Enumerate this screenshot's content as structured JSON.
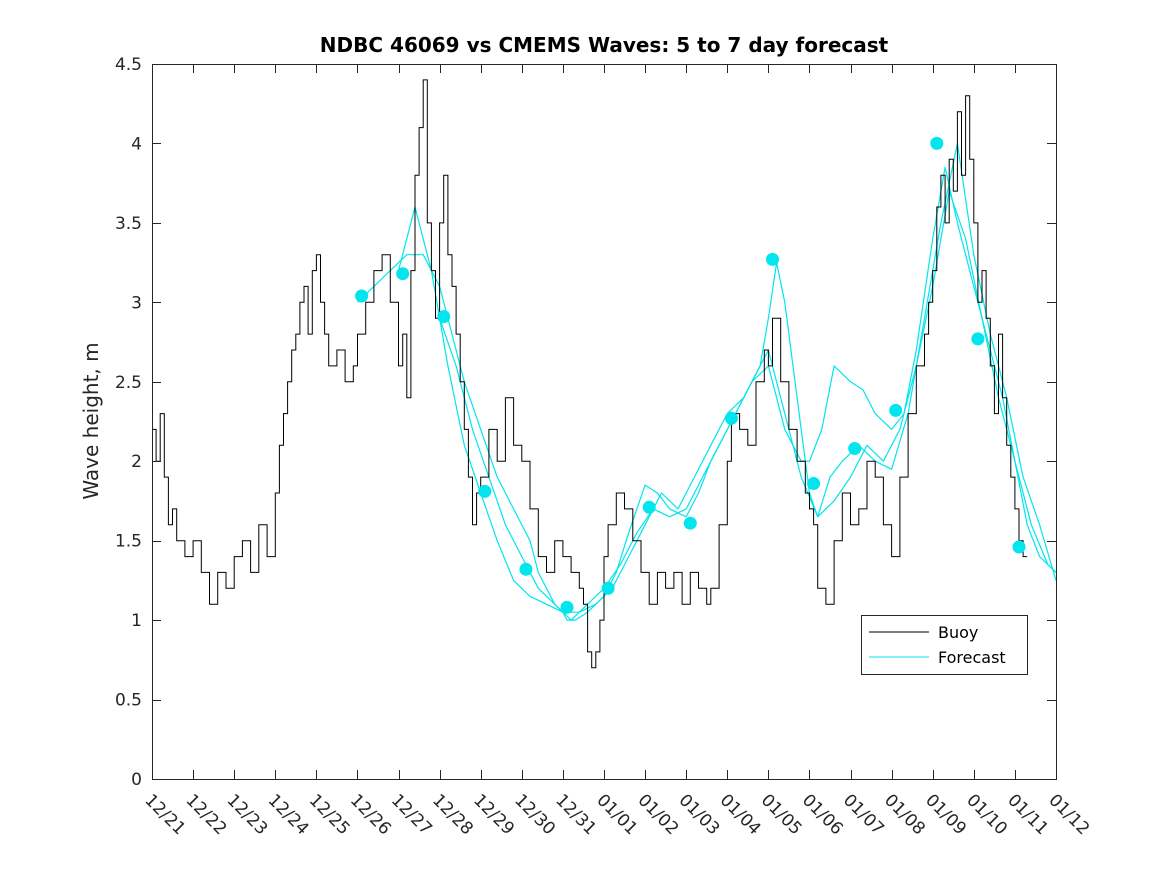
{
  "chart_data": {
    "type": "line",
    "title": "NDBC 46069 vs CMEMS Waves: 5 to 7 day forecast",
    "xlabel": "",
    "ylabel": "Wave height, m",
    "xlim": [
      0,
      22
    ],
    "ylim": [
      0,
      4.5
    ],
    "y_ticks": [
      0,
      0.5,
      1,
      1.5,
      2,
      2.5,
      3,
      3.5,
      4,
      4.5
    ],
    "x_ticks": [
      0,
      1,
      2,
      3,
      4,
      5,
      6,
      7,
      8,
      9,
      10,
      11,
      12,
      13,
      14,
      15,
      16,
      17,
      18,
      19,
      20,
      21,
      22
    ],
    "x_tick_labels": [
      "12/21",
      "12/22",
      "12/23",
      "12/24",
      "12/25",
      "12/26",
      "12/27",
      "12/28",
      "12/29",
      "12/30",
      "12/31",
      "01/01",
      "01/02",
      "01/03",
      "01/04",
      "01/05",
      "01/06",
      "01/07",
      "01/08",
      "01/09",
      "01/10",
      "01/11",
      "01/12"
    ],
    "legend": {
      "position": "lower-right",
      "entries": [
        "Buoy",
        "Forecast"
      ]
    },
    "colors": {
      "buoy": "#000000",
      "forecast": "#00e5ee",
      "marker": "#00e5ee",
      "axes": "#262626"
    },
    "series": [
      {
        "name": "Buoy",
        "x": [
          0,
          0.1,
          0.2,
          0.3,
          0.4,
          0.5,
          0.6,
          0.8,
          1.0,
          1.2,
          1.4,
          1.6,
          1.8,
          2.0,
          2.2,
          2.4,
          2.6,
          2.8,
          3.0,
          3.1,
          3.2,
          3.3,
          3.4,
          3.5,
          3.6,
          3.7,
          3.8,
          3.9,
          4.0,
          4.1,
          4.2,
          4.3,
          4.5,
          4.7,
          4.9,
          5.0,
          5.2,
          5.4,
          5.6,
          5.8,
          6.0,
          6.1,
          6.2,
          6.3,
          6.4,
          6.5,
          6.6,
          6.7,
          6.8,
          6.9,
          7.0,
          7.1,
          7.2,
          7.3,
          7.4,
          7.5,
          7.6,
          7.7,
          7.8,
          7.9,
          8.0,
          8.2,
          8.4,
          8.6,
          8.8,
          9.0,
          9.2,
          9.4,
          9.6,
          9.8,
          10.0,
          10.2,
          10.4,
          10.5,
          10.6,
          10.7,
          10.8,
          10.9,
          11.0,
          11.1,
          11.3,
          11.5,
          11.7,
          11.9,
          12.1,
          12.3,
          12.5,
          12.7,
          12.9,
          13.1,
          13.3,
          13.5,
          13.6,
          13.8,
          14.0,
          14.1,
          14.3,
          14.5,
          14.7,
          14.9,
          15.0,
          15.1,
          15.3,
          15.5,
          15.7,
          15.9,
          16.0,
          16.1,
          16.2,
          16.4,
          16.6,
          16.8,
          17.0,
          17.2,
          17.4,
          17.6,
          17.8,
          18.0,
          18.2,
          18.4,
          18.6,
          18.8,
          18.9,
          19.0,
          19.1,
          19.2,
          19.3,
          19.4,
          19.5,
          19.6,
          19.7,
          19.8,
          19.9,
          20.0,
          20.1,
          20.2,
          20.3,
          20.4,
          20.5,
          20.6,
          20.7,
          20.8,
          20.9,
          21.0,
          21.1,
          21.2,
          21.3
        ],
        "y": [
          2.2,
          2.0,
          2.3,
          1.9,
          1.6,
          1.7,
          1.5,
          1.4,
          1.5,
          1.3,
          1.1,
          1.3,
          1.2,
          1.4,
          1.5,
          1.3,
          1.6,
          1.4,
          1.8,
          2.1,
          2.3,
          2.5,
          2.7,
          2.8,
          3.0,
          3.1,
          2.8,
          3.2,
          3.3,
          3.0,
          2.8,
          2.6,
          2.7,
          2.5,
          2.6,
          2.8,
          3.0,
          3.2,
          3.3,
          3.0,
          2.6,
          2.8,
          2.4,
          3.2,
          3.8,
          4.1,
          4.4,
          3.5,
          3.2,
          2.9,
          3.5,
          3.8,
          3.3,
          3.1,
          2.8,
          2.5,
          2.2,
          1.9,
          1.6,
          1.8,
          1.9,
          2.2,
          2.0,
          2.4,
          2.1,
          2.0,
          1.7,
          1.4,
          1.3,
          1.5,
          1.4,
          1.3,
          1.2,
          1.1,
          0.8,
          0.7,
          0.8,
          1.0,
          1.4,
          1.6,
          1.8,
          1.7,
          1.5,
          1.3,
          1.1,
          1.3,
          1.2,
          1.3,
          1.1,
          1.3,
          1.2,
          1.1,
          1.2,
          1.6,
          2.0,
          2.3,
          2.2,
          2.1,
          2.5,
          2.7,
          2.6,
          2.9,
          2.5,
          2.2,
          2.0,
          1.8,
          1.7,
          1.6,
          1.2,
          1.1,
          1.5,
          1.8,
          1.6,
          1.7,
          2.0,
          1.9,
          1.6,
          1.4,
          1.9,
          2.3,
          2.6,
          2.8,
          3.0,
          3.2,
          3.6,
          3.8,
          3.5,
          3.9,
          3.7,
          4.2,
          3.8,
          4.3,
          3.9,
          3.5,
          3.0,
          3.2,
          2.9,
          2.6,
          2.3,
          2.8,
          2.4,
          2.1,
          1.9,
          1.7,
          1.5,
          1.4,
          1.4
        ]
      },
      {
        "name": "Forecast",
        "runs": [
          {
            "x": [
              5.0,
              5.4,
              5.8,
              6.2,
              6.6,
              7.0,
              7.3,
              7.6,
              8.0,
              8.4,
              8.8,
              9.2,
              9.4,
              9.6,
              9.8,
              10.0,
              10.1,
              10.3,
              10.6,
              11.0,
              11.3,
              11.6,
              12.0,
              12.3,
              12.6,
              13.0,
              13.3,
              13.6,
              14.0,
              14.3,
              14.6,
              15.0,
              15.2,
              15.4,
              15.6,
              15.8,
              16.0,
              16.3,
              16.6,
              17.0,
              17.3,
              17.6,
              18.0,
              18.3,
              18.6,
              19.0,
              19.3,
              19.6,
              19.9,
              20.1,
              20.4,
              20.7,
              21.0,
              21.3,
              21.6,
              22.0
            ],
            "y": [
              3.0,
              3.1,
              3.2,
              3.3,
              3.3,
              3.1,
              2.8,
              2.5,
              2.2,
              1.9,
              1.7,
              1.5,
              1.3,
              1.2,
              1.1,
              1.05,
              1.0,
              1.0,
              1.05,
              1.15,
              1.3,
              1.55,
              1.85,
              1.8,
              1.7,
              1.65,
              1.8,
              2.0,
              2.2,
              2.35,
              2.5,
              2.6,
              2.4,
              2.2,
              2.1,
              2.0,
              2.0,
              2.2,
              2.6,
              2.5,
              2.45,
              2.3,
              2.2,
              2.3,
              2.7,
              3.4,
              3.85,
              3.5,
              3.2,
              3.0,
              2.7,
              2.4,
              2.0,
              1.6,
              1.4,
              1.3
            ]
          },
          {
            "x": [
              6.0,
              6.4,
              6.8,
              7.2,
              7.6,
              8.0,
              8.4,
              8.8,
              9.2,
              9.6,
              10.0,
              10.4,
              10.8,
              11.2,
              11.6,
              12.0,
              12.4,
              12.8,
              13.2,
              13.6,
              14.0,
              14.4,
              14.8,
              15.0,
              15.2,
              15.4,
              15.6,
              15.8,
              16.0,
              16.2,
              16.5,
              16.8,
              17.2,
              17.6,
              18.0,
              18.4,
              18.8,
              19.2,
              19.6,
              20.0,
              20.4,
              20.8,
              21.2,
              21.6,
              22.0
            ],
            "y": [
              3.2,
              3.6,
              3.2,
              2.6,
              2.1,
              1.8,
              1.5,
              1.25,
              1.15,
              1.1,
              1.05,
              1.05,
              1.1,
              1.2,
              1.4,
              1.6,
              1.8,
              1.7,
              1.9,
              2.1,
              2.3,
              2.4,
              2.6,
              2.9,
              3.25,
              3.0,
              2.6,
              2.2,
              1.8,
              1.65,
              1.9,
              2.0,
              2.1,
              2.0,
              1.95,
              2.3,
              2.9,
              3.5,
              4.0,
              3.3,
              2.8,
              2.4,
              1.9,
              1.6,
              1.25
            ]
          },
          {
            "x": [
              7.0,
              7.4,
              7.8,
              8.2,
              8.6,
              9.0,
              9.4,
              9.8,
              10.2,
              10.6,
              11.0,
              11.4,
              11.8,
              12.2,
              12.6,
              13.0,
              13.4,
              13.8,
              14.2,
              14.6,
              15.0,
              15.4,
              15.8,
              16.2,
              16.6,
              17.0,
              17.4,
              17.8,
              18.2,
              18.6,
              19.0,
              19.4,
              19.8,
              20.2,
              20.6,
              21.0,
              21.4,
              21.8,
              22.0
            ],
            "y": [
              2.9,
              2.6,
              2.2,
              1.9,
              1.6,
              1.4,
              1.2,
              1.1,
              1.0,
              1.1,
              1.2,
              1.35,
              1.55,
              1.7,
              1.65,
              1.7,
              1.9,
              2.1,
              2.3,
              2.5,
              2.7,
              2.3,
              1.9,
              1.65,
              1.75,
              1.9,
              2.1,
              2.0,
              2.2,
              2.6,
              3.1,
              3.7,
              3.4,
              2.9,
              2.4,
              2.0,
              1.6,
              1.35,
              1.3
            ]
          }
        ]
      },
      {
        "name": "Forecast markers",
        "x": [
          5.1,
          6.1,
          7.1,
          8.1,
          9.1,
          10.1,
          11.1,
          12.1,
          13.1,
          14.1,
          15.1,
          16.1,
          17.1,
          18.1,
          19.1,
          20.1,
          21.1
        ],
        "y": [
          3.04,
          3.18,
          2.91,
          1.81,
          1.32,
          1.08,
          1.2,
          1.71,
          1.61,
          2.27,
          3.27,
          1.86,
          2.08,
          2.32,
          4.0,
          2.77,
          1.46
        ]
      }
    ]
  }
}
